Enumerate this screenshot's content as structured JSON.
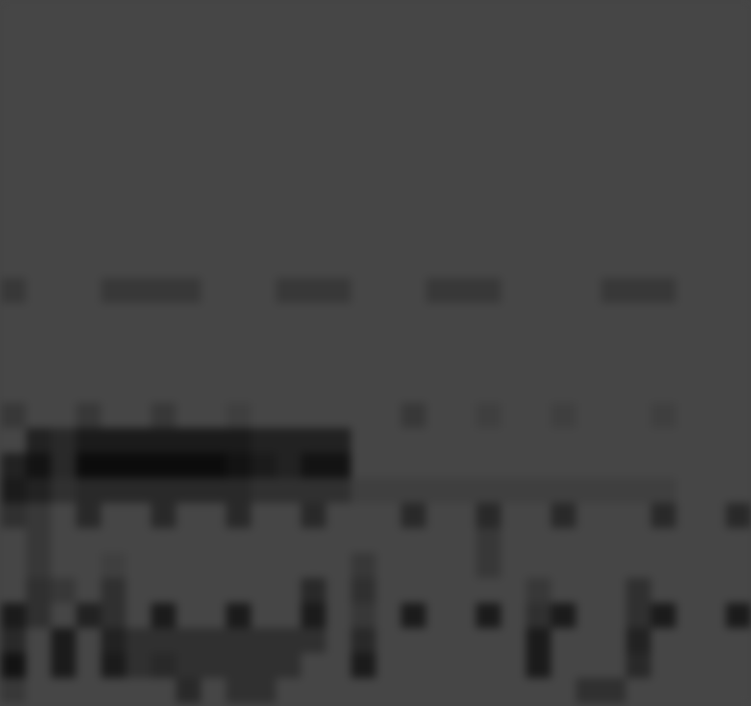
{
  "chart_data": {
    "type": "heatmap",
    "tick_labels": false,
    "cells": [
      [
        0,
        0,
        0,
        0,
        0,
        0,
        0,
        0,
        0,
        0,
        0,
        0,
        0,
        0,
        0,
        0,
        0,
        0,
        0,
        0,
        0,
        0,
        0,
        0,
        0,
        0,
        0,
        0,
        0,
        0
      ],
      [
        0,
        0,
        0,
        0,
        0,
        0,
        0,
        0,
        0,
        0,
        0,
        0,
        0,
        0,
        0,
        0,
        0,
        0,
        0,
        0,
        0,
        0,
        0,
        0,
        0,
        0,
        0,
        0,
        0,
        0
      ],
      [
        0,
        0,
        0,
        0,
        0,
        0,
        0,
        0,
        0,
        0,
        0,
        0,
        0,
        0,
        0,
        0,
        0,
        0,
        0,
        0,
        0,
        0,
        0,
        0,
        0,
        0,
        0,
        0,
        0,
        0
      ],
      [
        0,
        0,
        0,
        0,
        0,
        0,
        0,
        0,
        0,
        0,
        0,
        0,
        0,
        0,
        0,
        0,
        0,
        0,
        0,
        0,
        0,
        0,
        0,
        0,
        0,
        0,
        0,
        0,
        0,
        0
      ],
      [
        0,
        0,
        0,
        0,
        0,
        0,
        0,
        0,
        0,
        0,
        0,
        0,
        0,
        0,
        0,
        0,
        0,
        0,
        0,
        0,
        0,
        0,
        0,
        0,
        0,
        0,
        0,
        0,
        0,
        0
      ],
      [
        0,
        0,
        0,
        0,
        0,
        0,
        0,
        0,
        0,
        0,
        0,
        0,
        0,
        0,
        0,
        0,
        0,
        0,
        0,
        0,
        0,
        0,
        0,
        0,
        0,
        0,
        0,
        0,
        0,
        0
      ],
      [
        0,
        0,
        0,
        0,
        0,
        0,
        0,
        0,
        0,
        0,
        0,
        0,
        0,
        0,
        0,
        0,
        0,
        0,
        0,
        0,
        0,
        0,
        0,
        0,
        0,
        0,
        0,
        0,
        0,
        0
      ],
      [
        0,
        0,
        0,
        0,
        0,
        0,
        0,
        0,
        0,
        0,
        0,
        0,
        0,
        0,
        0,
        0,
        0,
        0,
        0,
        0,
        0,
        0,
        0,
        0,
        0,
        0,
        0,
        0,
        0,
        0
      ],
      [
        0,
        0,
        0,
        0,
        0,
        0,
        0,
        0,
        0,
        0,
        0,
        0,
        0,
        0,
        0,
        0,
        0,
        0,
        0,
        0,
        0,
        0,
        0,
        0,
        0,
        0,
        0,
        0,
        0,
        0
      ],
      [
        0,
        0,
        0,
        0,
        0,
        0,
        0,
        0,
        0,
        0,
        0,
        0,
        0,
        0,
        0,
        0,
        0,
        0,
        0,
        0,
        0,
        0,
        0,
        0,
        0,
        0,
        0,
        0,
        0,
        0
      ],
      [
        0,
        0,
        0,
        0,
        0,
        0,
        0,
        0,
        0,
        0,
        0,
        0,
        0,
        0,
        0,
        0,
        0,
        0,
        0,
        0,
        0,
        0,
        0,
        0,
        0,
        0,
        0,
        0,
        0,
        0
      ],
      [
        2,
        0,
        0,
        0,
        2,
        2,
        2,
        2,
        0,
        0,
        0,
        2,
        2,
        2,
        0,
        0,
        0,
        2,
        2,
        2,
        0,
        0,
        0,
        0,
        2,
        2,
        2,
        0,
        0,
        0
      ],
      [
        0,
        0,
        0,
        0,
        0,
        0,
        0,
        0,
        0,
        0,
        0,
        0,
        0,
        0,
        0,
        0,
        0,
        0,
        0,
        0,
        0,
        0,
        0,
        0,
        0,
        0,
        0,
        0,
        0,
        0
      ],
      [
        0,
        0,
        0,
        0,
        0,
        0,
        0,
        0,
        0,
        0,
        0,
        0,
        0,
        0,
        0,
        0,
        0,
        0,
        0,
        0,
        0,
        0,
        0,
        0,
        0,
        0,
        0,
        0,
        0,
        0
      ],
      [
        0,
        0,
        0,
        0,
        0,
        0,
        0,
        0,
        0,
        0,
        0,
        0,
        0,
        0,
        0,
        0,
        0,
        0,
        0,
        0,
        0,
        0,
        0,
        0,
        0,
        0,
        0,
        0,
        0,
        0
      ],
      [
        0,
        0,
        0,
        0,
        0,
        0,
        0,
        0,
        0,
        0,
        0,
        0,
        0,
        0,
        0,
        0,
        0,
        0,
        0,
        0,
        0,
        0,
        0,
        0,
        0,
        0,
        0,
        0,
        0,
        0
      ],
      [
        2,
        0,
        0,
        2,
        0,
        0,
        2,
        0,
        0,
        1,
        0,
        0,
        0,
        0,
        0,
        0,
        2,
        0,
        0,
        1,
        0,
        0,
        1,
        0,
        0,
        0,
        1,
        0,
        0,
        0
      ],
      [
        0,
        5,
        4,
        6,
        6,
        6,
        6,
        6,
        6,
        6,
        5,
        5,
        5,
        5,
        0,
        0,
        0,
        0,
        0,
        0,
        0,
        0,
        0,
        0,
        0,
        0,
        0,
        0,
        0,
        0
      ],
      [
        5,
        7,
        4,
        8,
        8,
        8,
        8,
        8,
        8,
        7,
        6,
        5,
        7,
        7,
        0,
        0,
        0,
        0,
        0,
        0,
        0,
        0,
        0,
        0,
        0,
        0,
        0,
        0,
        0,
        0
      ],
      [
        6,
        5,
        3,
        4,
        4,
        4,
        4,
        4,
        4,
        4,
        3,
        3,
        3,
        3,
        1,
        1,
        1,
        1,
        1,
        1,
        1,
        1,
        1,
        1,
        1,
        1,
        1,
        0,
        0,
        0
      ],
      [
        3,
        2,
        0,
        4,
        0,
        0,
        4,
        0,
        0,
        4,
        0,
        0,
        4,
        0,
        0,
        0,
        4,
        0,
        0,
        4,
        0,
        0,
        4,
        0,
        0,
        0,
        4,
        0,
        0,
        4
      ],
      [
        0,
        2,
        0,
        0,
        0,
        0,
        0,
        0,
        0,
        0,
        0,
        0,
        0,
        0,
        0,
        0,
        0,
        0,
        0,
        2,
        0,
        0,
        0,
        0,
        0,
        0,
        0,
        0,
        0,
        0
      ],
      [
        0,
        2,
        0,
        0,
        1,
        0,
        0,
        0,
        0,
        0,
        0,
        0,
        0,
        0,
        2,
        0,
        0,
        0,
        0,
        2,
        0,
        0,
        0,
        0,
        0,
        0,
        0,
        0,
        0,
        0
      ],
      [
        0,
        3,
        2,
        0,
        3,
        0,
        0,
        0,
        0,
        0,
        0,
        0,
        4,
        0,
        3,
        0,
        0,
        0,
        0,
        0,
        0,
        2,
        0,
        0,
        0,
        3,
        0,
        0,
        0,
        0
      ],
      [
        6,
        3,
        0,
        5,
        3,
        0,
        6,
        0,
        0,
        6,
        0,
        0,
        6,
        0,
        2,
        0,
        6,
        0,
        0,
        6,
        0,
        3,
        6,
        0,
        0,
        3,
        6,
        0,
        0,
        6
      ],
      [
        4,
        0,
        6,
        0,
        5,
        3,
        3,
        3,
        3,
        3,
        3,
        3,
        3,
        0,
        4,
        0,
        0,
        0,
        0,
        0,
        0,
        6,
        0,
        0,
        0,
        5,
        0,
        0,
        0,
        0
      ],
      [
        7,
        0,
        6,
        0,
        6,
        3,
        4,
        3,
        3,
        3,
        3,
        3,
        0,
        0,
        6,
        0,
        0,
        0,
        0,
        0,
        0,
        6,
        0,
        0,
        0,
        4,
        0,
        0,
        0,
        0
      ],
      [
        2,
        0,
        0,
        0,
        0,
        0,
        0,
        4,
        0,
        3,
        3,
        0,
        0,
        0,
        0,
        0,
        0,
        0,
        0,
        0,
        0,
        0,
        0,
        3,
        3,
        0,
        0,
        0,
        0,
        0
      ]
    ]
  }
}
